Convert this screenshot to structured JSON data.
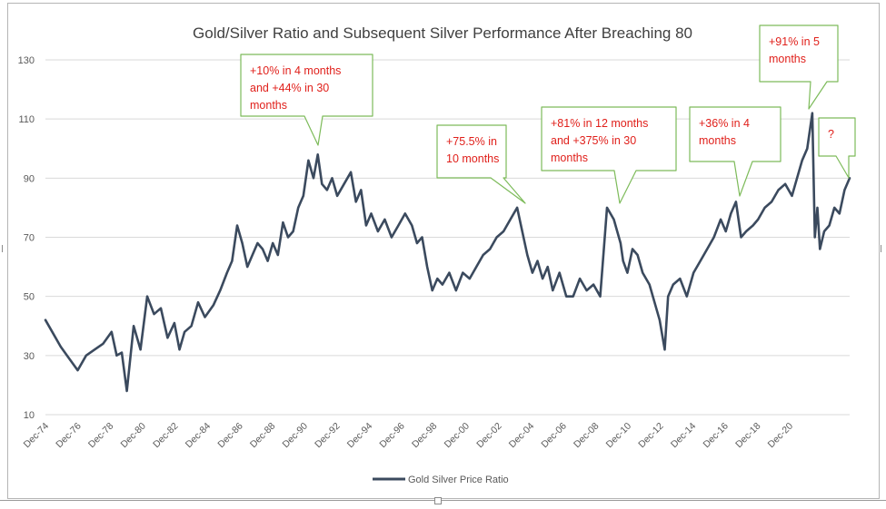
{
  "chart_data": {
    "type": "line",
    "title": "Gold/Silver Ratio and Subsequent Silver Performance After Breaching 80",
    "ylim": [
      10,
      130
    ],
    "yticks": [
      10,
      30,
      50,
      70,
      90,
      110,
      130
    ],
    "xticks": [
      "Dec-74",
      "Dec-76",
      "Dec-78",
      "Dec-80",
      "Dec-82",
      "Dec-84",
      "Dec-86",
      "Dec-88",
      "Dec-90",
      "Dec-92",
      "Dec-94",
      "Dec-96",
      "Dec-98",
      "Dec-00",
      "Dec-02",
      "Dec-04",
      "Dec-06",
      "Dec-08",
      "Dec-10",
      "Dec-12",
      "Dec-14",
      "Dec-16",
      "Dec-18",
      "Dec-20"
    ],
    "grid": "horizontal",
    "legend": "bottom-center",
    "series": [
      {
        "name": "Gold Silver Price Ratio",
        "color": "#3b4a5e",
        "x": [
          1974.9,
          1975.3,
          1975.8,
          1976.3,
          1976.8,
          1977.3,
          1977.8,
          1978.3,
          1978.8,
          1979.1,
          1979.4,
          1979.7,
          1980.1,
          1980.5,
          1980.9,
          1981.3,
          1981.7,
          1982.1,
          1982.5,
          1982.8,
          1983.1,
          1983.5,
          1983.9,
          1984.3,
          1984.8,
          1985.2,
          1985.6,
          1985.9,
          1986.2,
          1986.5,
          1986.8,
          1987.1,
          1987.4,
          1987.7,
          1988.0,
          1988.3,
          1988.6,
          1988.9,
          1989.2,
          1989.5,
          1989.8,
          1990.1,
          1990.4,
          1990.7,
          1990.95,
          1991.2,
          1991.5,
          1991.8,
          1992.1,
          1992.5,
          1992.9,
          1993.2,
          1993.5,
          1993.8,
          1994.1,
          1994.5,
          1994.9,
          1995.3,
          1995.7,
          1996.1,
          1996.5,
          1996.8,
          1997.1,
          1997.4,
          1997.7,
          1998.0,
          1998.3,
          1998.7,
          1999.1,
          1999.5,
          1999.9,
          2000.3,
          2000.7,
          2001.1,
          2001.5,
          2001.9,
          2002.3,
          2002.7,
          2003.0,
          2003.3,
          2003.6,
          2003.9,
          2004.2,
          2004.5,
          2004.8,
          2005.2,
          2005.6,
          2006.0,
          2006.4,
          2006.8,
          2007.2,
          2007.6,
          2008.0,
          2008.4,
          2008.8,
          2008.95,
          2009.2,
          2009.5,
          2009.8,
          2010.1,
          2010.5,
          2010.8,
          2011.1,
          2011.4,
          2011.6,
          2011.9,
          2012.3,
          2012.7,
          2013.1,
          2013.5,
          2013.9,
          2014.3,
          2014.7,
          2015.0,
          2015.3,
          2015.6,
          2015.9,
          2016.2,
          2016.6,
          2016.9,
          2017.3,
          2017.7,
          2018.1,
          2018.5,
          2018.9,
          2019.2,
          2019.5,
          2019.8,
          2020.1,
          2020.25,
          2020.4,
          2020.55,
          2020.8,
          2021.1,
          2021.4,
          2021.7,
          2022.0,
          2022.3
        ],
        "values": [
          42,
          38,
          33,
          29,
          25,
          30,
          32,
          34,
          38,
          30,
          31,
          18,
          40,
          32,
          50,
          44,
          46,
          36,
          41,
          32,
          38,
          40,
          48,
          43,
          47,
          52,
          58,
          62,
          74,
          68,
          60,
          64,
          68,
          66,
          62,
          68,
          64,
          75,
          70,
          72,
          80,
          84,
          96,
          90,
          98,
          88,
          86,
          90,
          84,
          88,
          92,
          82,
          86,
          74,
          78,
          72,
          76,
          70,
          74,
          78,
          74,
          68,
          70,
          60,
          52,
          56,
          54,
          58,
          52,
          58,
          56,
          60,
          64,
          66,
          70,
          72,
          76,
          80,
          72,
          64,
          58,
          62,
          56,
          60,
          52,
          58,
          50,
          50,
          56,
          52,
          54,
          50,
          80,
          76,
          68,
          62,
          58,
          66,
          64,
          58,
          54,
          48,
          42,
          32,
          50,
          54,
          56,
          50,
          58,
          62,
          66,
          70,
          76,
          72,
          78,
          82,
          70,
          72,
          74,
          76,
          80,
          82,
          86,
          88,
          84,
          90,
          96,
          100,
          112,
          70,
          80,
          66,
          72,
          74,
          80,
          78,
          86,
          90
        ]
      }
    ],
    "annotations": [
      {
        "text": "+10% in 4 months and +44% in 30 months",
        "lines": [
          "+10% in 4 months",
          "and +44% in 30",
          "months"
        ]
      },
      {
        "text": "+75.5% in 10 months",
        "lines": [
          "+75.5% in",
          "10 months"
        ]
      },
      {
        "text": "+81% in 12 months and +375% in 30 months",
        "lines": [
          "+81% in 12 months",
          "and +375% in 30",
          "months"
        ]
      },
      {
        "text": "+36% in 4 months",
        "lines": [
          "+36% in 4",
          "months"
        ]
      },
      {
        "text": "+91% in 5 months",
        "lines": [
          "+91% in 5",
          "months"
        ]
      },
      {
        "text": "?",
        "lines": [
          "?"
        ]
      }
    ],
    "colors": {
      "line": "#3b4a5e",
      "callout_border": "#7dbb5a",
      "callout_text": "#e0201b",
      "grid": "#d9d9d9",
      "axis_text": "#595959"
    }
  }
}
